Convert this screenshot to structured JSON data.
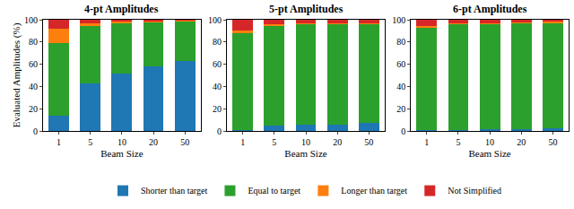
{
  "chart_data": [
    {
      "type": "bar",
      "stacked": true,
      "title": "4-pt Amplitudes",
      "x_label": "Beam Size",
      "y_label": "Evaluated Amplitudes (%)",
      "categories": [
        "1",
        "5",
        "10",
        "20",
        "50"
      ],
      "ylim": [
        0,
        100
      ],
      "yticks": [
        0,
        20,
        40,
        60,
        80,
        100
      ],
      "grid": false,
      "legend": "bottom",
      "series": [
        {
          "name": "Shorter than target",
          "color": "#1f77b4",
          "values": [
            14,
            43,
            52,
            58,
            63
          ]
        },
        {
          "name": "Equal to target",
          "color": "#2ca02c",
          "values": [
            65,
            51,
            45,
            40,
            36
          ]
        },
        {
          "name": "Longer than target",
          "color": "#ff7f0e",
          "values": [
            13,
            3,
            1,
            1,
            0.5
          ]
        },
        {
          "name": "Not Simplified",
          "color": "#d62728",
          "values": [
            8,
            3,
            2,
            1,
            0.5
          ]
        }
      ]
    },
    {
      "type": "bar",
      "stacked": true,
      "title": "5-pt Amplitudes",
      "x_label": "Beam Size",
      "categories": [
        "1",
        "5",
        "10",
        "20",
        "50"
      ],
      "ylim": [
        0,
        100
      ],
      "yticks": [
        0,
        20,
        40,
        60,
        80,
        100
      ],
      "grid": false,
      "series": [
        {
          "name": "Shorter than target",
          "color": "#1f77b4",
          "values": [
            1,
            5,
            6,
            6,
            7
          ]
        },
        {
          "name": "Equal to target",
          "color": "#2ca02c",
          "values": [
            87,
            90,
            90,
            90,
            89
          ]
        },
        {
          "name": "Longer than target",
          "color": "#ff7f0e",
          "values": [
            2,
            1,
            0.5,
            0.5,
            0.5
          ]
        },
        {
          "name": "Not Simplified",
          "color": "#d62728",
          "values": [
            10,
            4,
            3.5,
            3.5,
            3.5
          ]
        }
      ]
    },
    {
      "type": "bar",
      "stacked": true,
      "title": "6-pt Amplitudes",
      "x_label": "Beam Size",
      "categories": [
        "1",
        "5",
        "10",
        "20",
        "50"
      ],
      "ylim": [
        0,
        100
      ],
      "yticks": [
        0,
        20,
        40,
        60,
        80,
        100
      ],
      "grid": false,
      "series": [
        {
          "name": "Shorter than target",
          "color": "#1f77b4",
          "values": [
            0.5,
            1,
            2,
            2,
            2.5
          ]
        },
        {
          "name": "Equal to target",
          "color": "#2ca02c",
          "values": [
            92.5,
            95,
            94.5,
            95,
            95
          ]
        },
        {
          "name": "Longer than target",
          "color": "#ff7f0e",
          "values": [
            1,
            1,
            0.5,
            0.5,
            0.5
          ]
        },
        {
          "name": "Not Simplified",
          "color": "#d62728",
          "values": [
            6,
            3,
            3,
            2.5,
            2
          ]
        }
      ]
    }
  ]
}
